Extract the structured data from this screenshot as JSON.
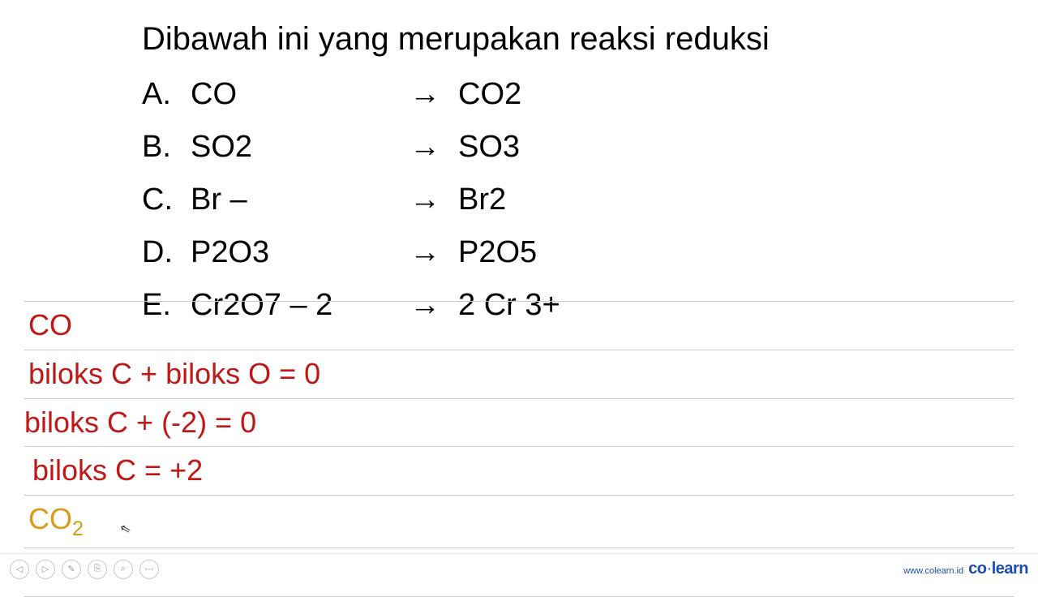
{
  "colors": {
    "text_black": "#000000",
    "text_red": "#c01818",
    "text_orange": "#d99b1a",
    "line_gray": "#cccccc",
    "brand_blue": "#1a4db3"
  },
  "question": {
    "title": "Dibawah ini yang merupakan reaksi reduksi",
    "arrow_glyph": "→",
    "options": [
      {
        "letter": "A.",
        "reactant": "CO",
        "product": "CO2"
      },
      {
        "letter": "B.",
        "reactant": "SO2",
        "product": " SO3"
      },
      {
        "letter": "C.",
        "reactant": "Br –",
        "product": "Br2"
      },
      {
        "letter": "D.",
        "reactant": " P2O3",
        "product": " P2O5"
      },
      {
        "letter": "E.",
        "reactant": "Cr2O7 – 2",
        "product": " 2 Cr 3+"
      }
    ]
  },
  "worked": {
    "lines": [
      {
        "text": "CO",
        "color": "#c01818",
        "pad_class": "worked-pad-1"
      },
      {
        "text": "biloks C + biloks O = 0",
        "color": "#c01818",
        "pad_class": "worked-pad-1"
      },
      {
        "text": "biloks C + (-2) = 0",
        "color": "#c01818",
        "pad_class": "worked-pad-2"
      },
      {
        "text": "biloks C = +2",
        "color": "#c01818",
        "pad_class": "worked-pad-3"
      }
    ],
    "co2_line": {
      "prefix": "CO",
      "sub": "2",
      "color": "#d99b1a",
      "pad_class": "worked-pad-1"
    },
    "empty_line": {
      "text": " ",
      "pad_class": ""
    }
  },
  "footer": {
    "url": "www.colearn.id",
    "brand_a": "co",
    "brand_dot": "·",
    "brand_b": "learn",
    "icons": {
      "prev": "◁",
      "next": "▷",
      "pen": "✎",
      "copy": "⎘",
      "zoom": "⌕",
      "more": "⋯"
    }
  }
}
